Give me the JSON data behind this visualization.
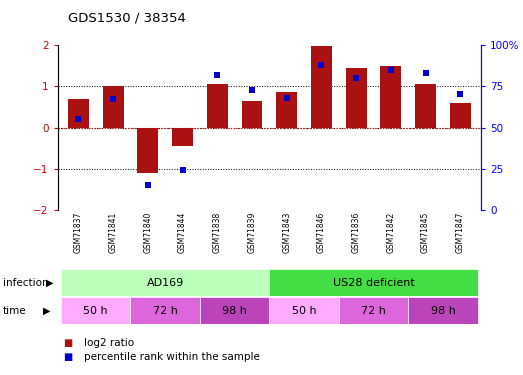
{
  "title": "GDS1530 / 38354",
  "samples": [
    "GSM71837",
    "GSM71841",
    "GSM71840",
    "GSM71844",
    "GSM71838",
    "GSM71839",
    "GSM71843",
    "GSM71846",
    "GSM71836",
    "GSM71842",
    "GSM71845",
    "GSM71847"
  ],
  "log2_ratio": [
    0.7,
    1.0,
    -1.1,
    -0.45,
    1.05,
    0.65,
    0.85,
    1.97,
    1.45,
    1.5,
    1.05,
    0.6
  ],
  "percentile_rank": [
    55,
    67,
    15,
    24,
    82,
    73,
    68,
    88,
    80,
    85,
    83,
    70
  ],
  "bar_color": "#aa1111",
  "dot_color": "#0000cc",
  "ylim_left": [
    -2,
    2
  ],
  "ylim_right": [
    0,
    100
  ],
  "yticks_left": [
    -2,
    -1,
    0,
    1,
    2
  ],
  "yticks_right": [
    0,
    25,
    50,
    75,
    100
  ],
  "ytick_labels_right": [
    "0",
    "25",
    "50",
    "75",
    "100%"
  ],
  "legend_items": [
    "log2 ratio",
    "percentile rank within the sample"
  ],
  "legend_colors": [
    "#aa1111",
    "#0000cc"
  ],
  "ad169_color": "#bbffbb",
  "us28_color": "#44dd44",
  "time_colors_list": [
    "#ffaaff",
    "#dd66dd",
    "#bb44bb",
    "#ffaaff",
    "#dd66dd",
    "#bb44bb"
  ],
  "time_labels": [
    "50 h",
    "72 h",
    "98 h",
    "50 h",
    "72 h",
    "98 h"
  ]
}
